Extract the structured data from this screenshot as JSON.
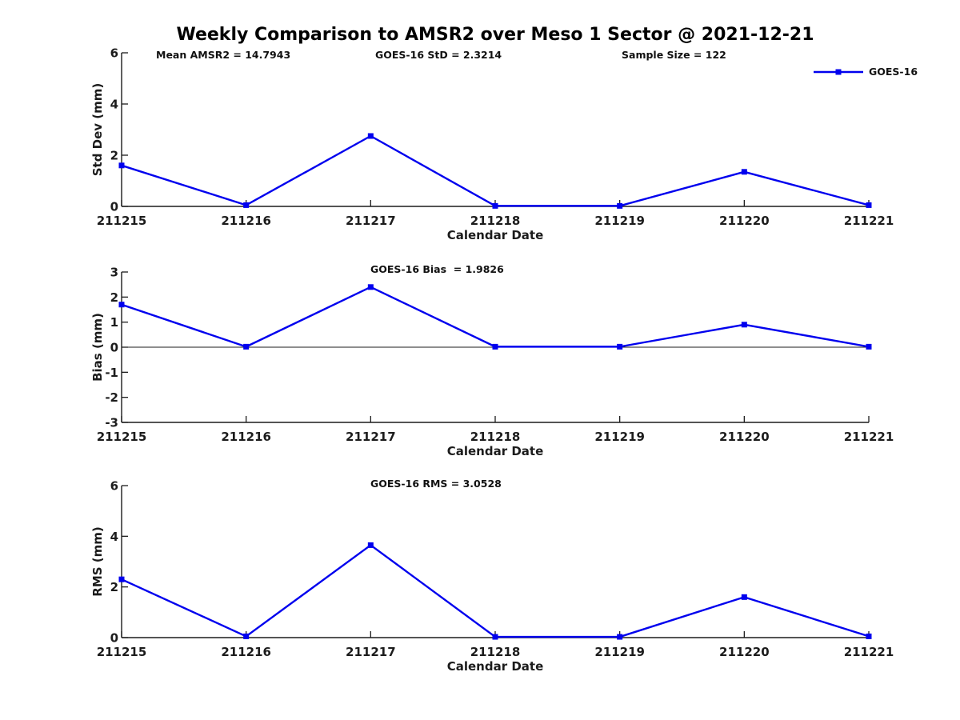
{
  "title": "Weekly Comparison to AMSR2 over Meso 1 Sector @ 2021-12-21",
  "header": {
    "annotations": [
      "Mean AMSR2 = 14.7943",
      "GOES-16 StD = 2.3214",
      "Sample Size = 122"
    ]
  },
  "legend": {
    "label": "GOES-16",
    "color": "#0000EE",
    "marker": "square"
  },
  "colors": {
    "line": "#0000EE",
    "axis": "#1c1c1c",
    "text": "#1c1c1c"
  },
  "chart_data": [
    {
      "type": "line",
      "panel": "std-dev",
      "annotation": "",
      "ylabel": "Std Dev (mm)",
      "xlabel": "Calendar Date",
      "categories": [
        "211215",
        "211216",
        "211217",
        "211218",
        "211219",
        "211220",
        "211221"
      ],
      "ylim": [
        0,
        6
      ],
      "yticks": [
        0,
        2,
        4,
        6
      ],
      "zero_line": false,
      "grid": false,
      "legend_position": "top-right-outside",
      "series": [
        {
          "name": "GOES-16",
          "marker": "square",
          "color": "#0000EE",
          "values": [
            1.6,
            0.05,
            2.75,
            0.02,
            0.02,
            1.35,
            0.05
          ]
        }
      ]
    },
    {
      "type": "line",
      "panel": "bias",
      "annotation": "GOES-16 Bias  = 1.9826",
      "ylabel": "Bias (mm)",
      "xlabel": "Calendar Date",
      "categories": [
        "211215",
        "211216",
        "211217",
        "211218",
        "211219",
        "211220",
        "211221"
      ],
      "ylim": [
        -3,
        3
      ],
      "yticks": [
        3,
        2,
        1,
        0,
        -1,
        -2,
        -3
      ],
      "zero_line": true,
      "grid": false,
      "series": [
        {
          "name": "GOES-16",
          "marker": "square",
          "color": "#0000EE",
          "values": [
            1.7,
            0.02,
            2.4,
            0.02,
            0.02,
            0.9,
            0.02
          ]
        }
      ]
    },
    {
      "type": "line",
      "panel": "rms",
      "annotation": "GOES-16 RMS = 3.0528",
      "ylabel": "RMS (mm)",
      "xlabel": "Calendar Date",
      "categories": [
        "211215",
        "211216",
        "211217",
        "211218",
        "211219",
        "211220",
        "211221"
      ],
      "ylim": [
        0,
        6
      ],
      "yticks": [
        0,
        2,
        4,
        6
      ],
      "zero_line": false,
      "grid": false,
      "series": [
        {
          "name": "GOES-16",
          "marker": "square",
          "color": "#0000EE",
          "values": [
            2.3,
            0.05,
            3.65,
            0.03,
            0.03,
            1.6,
            0.05
          ]
        }
      ]
    }
  ]
}
